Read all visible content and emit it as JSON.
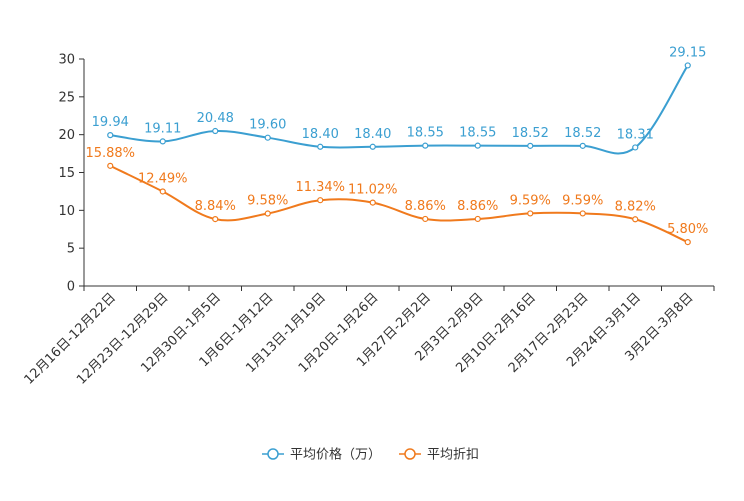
{
  "chart_data": {
    "type": "line",
    "title": "",
    "xlabel": "",
    "ylabel": "",
    "ylim": [
      0,
      30
    ],
    "yticks": [
      0,
      5,
      10,
      15,
      20,
      25,
      30
    ],
    "ytick_labels": [
      "0",
      "5",
      "10",
      "15",
      "20",
      "25",
      "30"
    ],
    "grid": false,
    "legend_position": "bottom-center",
    "categories": [
      "12月16日-12月22日",
      "12月23日-12月29日",
      "12月30日-1月5日",
      "1月6日-1月12日",
      "1月13日-1月19日",
      "1月20日-1月26日",
      "1月27日-2月2日",
      "2月3日-2月9日",
      "2月10日-2月16日",
      "2月17日-2月23日",
      "2月24日-3月1日",
      "3月2日-3月8日"
    ],
    "series": [
      {
        "name": "平均价格（万）",
        "color": "#3b9fd1",
        "values": [
          19.94,
          19.11,
          20.48,
          19.6,
          18.4,
          18.4,
          18.55,
          18.55,
          18.52,
          18.52,
          18.31,
          29.15
        ],
        "labels": [
          "19.94",
          "19.11",
          "20.48",
          "19.60",
          "18.40",
          "18.40",
          "18.55",
          "18.55",
          "18.52",
          "18.52",
          "18.31",
          "29.15"
        ]
      },
      {
        "name": "平均折扣",
        "color": "#f07a1d",
        "values": [
          15.88,
          12.49,
          8.84,
          9.58,
          11.34,
          11.02,
          8.86,
          8.86,
          9.59,
          9.59,
          8.82,
          5.8
        ],
        "labels": [
          "15.88%",
          "12.49%",
          "8.84%",
          "9.58%",
          "11.34%",
          "11.02%",
          "8.86%",
          "8.86%",
          "9.59%",
          "9.59%",
          "8.82%",
          "5.80%"
        ]
      }
    ]
  }
}
